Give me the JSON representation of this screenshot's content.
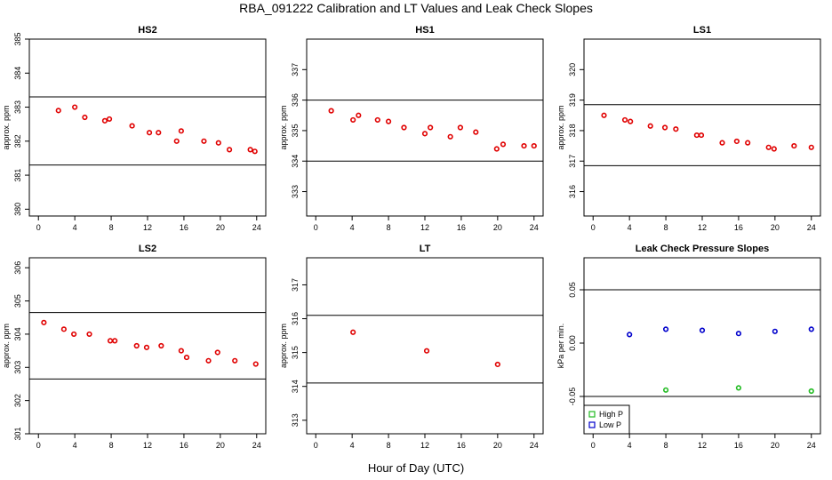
{
  "figure": {
    "title": "RBA_091222  Calibration and LT Values and Leak Check Slopes",
    "xlabel": "Hour of Day (UTC)"
  },
  "chart_data": [
    {
      "type": "scatter",
      "title": "HS2",
      "ylabel": "approx. ppm",
      "xlim": [
        -1,
        25
      ],
      "ylim": [
        379.8,
        385
      ],
      "xticks": [
        0,
        4,
        8,
        12,
        16,
        20,
        24
      ],
      "yticks": [
        380,
        381,
        382,
        383,
        384,
        385
      ],
      "hlines": [
        383.3,
        381.3
      ],
      "marker_color": "#e00000",
      "series": [
        {
          "x": [
            2.2,
            4.0,
            5.1,
            7.3,
            7.8,
            10.3,
            12.2,
            13.2,
            15.2,
            15.7,
            18.2,
            19.8,
            21.0,
            23.3,
            23.8
          ],
          "y": [
            382.9,
            383.0,
            382.7,
            382.6,
            382.65,
            382.45,
            382.25,
            382.25,
            382.0,
            382.3,
            382.0,
            381.95,
            381.75,
            381.75,
            381.7
          ]
        }
      ]
    },
    {
      "type": "scatter",
      "title": "HS1",
      "ylabel": "approx. ppm",
      "xlim": [
        -1,
        25
      ],
      "ylim": [
        332.2,
        338
      ],
      "xticks": [
        0,
        4,
        8,
        12,
        16,
        20,
        24
      ],
      "yticks": [
        333,
        334,
        335,
        336,
        337
      ],
      "hlines": [
        336.0,
        334.0
      ],
      "marker_color": "#e00000",
      "series": [
        {
          "x": [
            1.7,
            4.1,
            4.7,
            6.8,
            8.0,
            9.7,
            12.0,
            12.6,
            14.8,
            15.9,
            17.6,
            19.9,
            20.6,
            22.9,
            24.0
          ],
          "y": [
            335.65,
            335.35,
            335.5,
            335.35,
            335.3,
            335.1,
            334.9,
            335.1,
            334.8,
            335.1,
            334.95,
            334.4,
            334.55,
            334.5,
            334.5
          ]
        }
      ]
    },
    {
      "type": "scatter",
      "title": "LS1",
      "ylabel": "approx. ppm",
      "xlim": [
        -1,
        25
      ],
      "ylim": [
        315.2,
        321
      ],
      "xticks": [
        0,
        4,
        8,
        12,
        16,
        20,
        24
      ],
      "yticks": [
        316,
        317,
        318,
        319,
        320
      ],
      "hlines": [
        318.85,
        316.85
      ],
      "marker_color": "#e00000",
      "series": [
        {
          "x": [
            1.2,
            3.5,
            4.1,
            6.3,
            7.9,
            9.1,
            11.4,
            11.9,
            14.2,
            15.8,
            17.0,
            19.3,
            19.9,
            22.1,
            24.0
          ],
          "y": [
            318.5,
            318.35,
            318.3,
            318.15,
            318.1,
            318.05,
            317.85,
            317.85,
            317.6,
            317.65,
            317.6,
            317.45,
            317.4,
            317.5,
            317.45
          ]
        }
      ]
    },
    {
      "type": "scatter",
      "title": "LS2",
      "ylabel": "approx. ppm",
      "xlim": [
        -1,
        25
      ],
      "ylim": [
        301,
        306.3
      ],
      "xticks": [
        0,
        4,
        8,
        12,
        16,
        20,
        24
      ],
      "yticks": [
        301,
        302,
        303,
        304,
        305,
        306
      ],
      "hlines": [
        304.65,
        302.65
      ],
      "marker_color": "#e00000",
      "series": [
        {
          "x": [
            0.6,
            2.8,
            3.9,
            5.6,
            7.9,
            8.4,
            10.8,
            11.9,
            13.5,
            15.7,
            16.3,
            18.7,
            19.7,
            21.6,
            23.9
          ],
          "y": [
            304.35,
            304.15,
            304.0,
            304.0,
            303.8,
            303.8,
            303.65,
            303.6,
            303.65,
            303.5,
            303.3,
            303.2,
            303.45,
            303.2,
            303.1
          ]
        }
      ]
    },
    {
      "type": "scatter",
      "title": "LT",
      "ylabel": "approx. ppm",
      "xlim": [
        -1,
        25
      ],
      "ylim": [
        312.6,
        317.8
      ],
      "xticks": [
        0,
        4,
        8,
        12,
        16,
        20,
        24
      ],
      "yticks": [
        313,
        314,
        315,
        316,
        317
      ],
      "hlines": [
        316.1,
        314.1
      ],
      "marker_color": "#e00000",
      "series": [
        {
          "x": [
            4.1,
            12.2,
            20.0
          ],
          "y": [
            315.6,
            315.05,
            314.65
          ]
        }
      ]
    },
    {
      "type": "scatter",
      "title": "Leak Check Pressure Slopes",
      "ylabel": "kPa per min.",
      "xlim": [
        -1,
        25
      ],
      "ylim": [
        -0.085,
        0.08
      ],
      "xticks": [
        0,
        4,
        8,
        12,
        16,
        20,
        24
      ],
      "yticks": [
        -0.05,
        0.0,
        0.05
      ],
      "ytick_labels": [
        "-0.05",
        "0.00",
        "0.05"
      ],
      "hlines": [
        0.05,
        -0.05
      ],
      "legend": {
        "placement": "bottom-left"
      },
      "series": [
        {
          "name": "High P",
          "color": "#22bb22",
          "x": [
            8.0,
            16.0,
            24.0
          ],
          "y": [
            -0.044,
            -0.042,
            -0.045
          ]
        },
        {
          "name": "Low P",
          "color": "#0000cc",
          "x": [
            4.0,
            8.0,
            12.0,
            16.0,
            20.0,
            24.0
          ],
          "y": [
            0.008,
            0.013,
            0.012,
            0.009,
            0.011,
            0.013
          ]
        }
      ]
    }
  ]
}
